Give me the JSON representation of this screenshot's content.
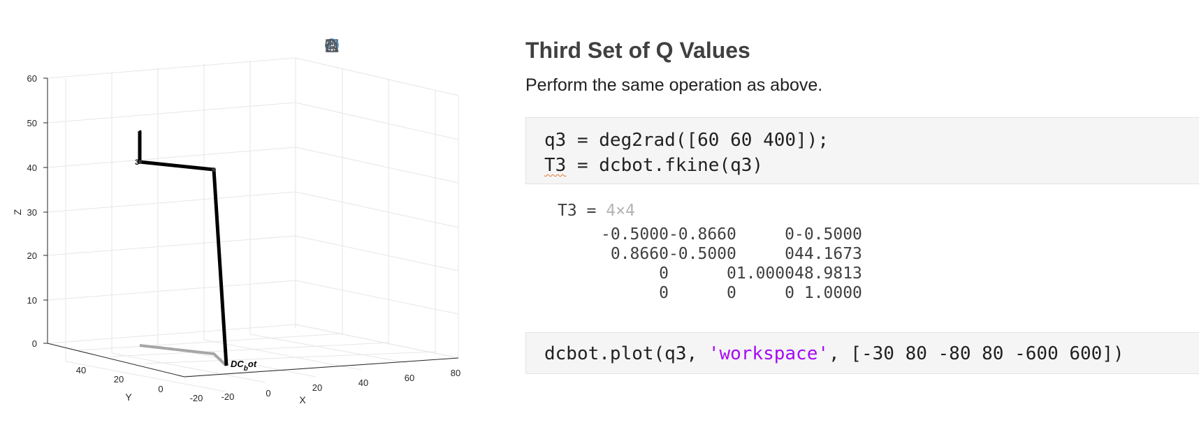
{
  "figure": {
    "toolbar": [
      {
        "name": "brush-icon",
        "label": ""
      },
      {
        "name": "data-tips-icon",
        "label": ""
      },
      {
        "name": "rotate-3d-icon",
        "label": ""
      },
      {
        "name": "pan-hand-icon",
        "label": ""
      },
      {
        "name": "zoom-in-icon",
        "label": ""
      },
      {
        "name": "zoom-out-icon",
        "label": ""
      },
      {
        "name": "home-icon",
        "label": ""
      }
    ],
    "z_ticks": [
      "0",
      "10",
      "20",
      "30",
      "40",
      "50",
      "60"
    ],
    "x_ticks": [
      "-20",
      "0",
      "20",
      "40",
      "60",
      "80"
    ],
    "y_ticks": [
      "40",
      "20",
      "0",
      "-20"
    ],
    "xlabel": "X",
    "ylabel": "Y",
    "zlabel": "Z",
    "robot_label_main": "DC",
    "robot_label_sub": "b",
    "robot_label_tail": "ot",
    "joint_label": "3"
  },
  "section": {
    "title": "Third Set of Q Values",
    "text": "Perform the same operation as above."
  },
  "code1": {
    "line1": "q3 = deg2rad([60 60 400]);",
    "line2_var": "T3",
    "line2_rest": " = dcbot.fkine(q3)"
  },
  "output": {
    "var": "T3 = ",
    "dims": "4×4",
    "matrix": [
      [
        "-0.5000",
        "-0.8660",
        "0",
        "-0.5000"
      ],
      [
        "0.8660",
        "-0.5000",
        "0",
        "44.1673"
      ],
      [
        "0",
        "0",
        "1.0000",
        "48.9813"
      ],
      [
        "0",
        "0",
        "0",
        "1.0000"
      ]
    ]
  },
  "code2": {
    "prefix": "dcbot.plot(q3, ",
    "string": "'workspace'",
    "suffix": ", [-30 80 -80 80 -600 600])"
  },
  "colors": {
    "code_background": "#f5f5f5",
    "string_literal": "#a709f5",
    "dims_gray": "#b3b3b3",
    "robot_link": "#000000",
    "shadow": "#a6a6a6",
    "toolbar_active": "#3d8fd9"
  }
}
